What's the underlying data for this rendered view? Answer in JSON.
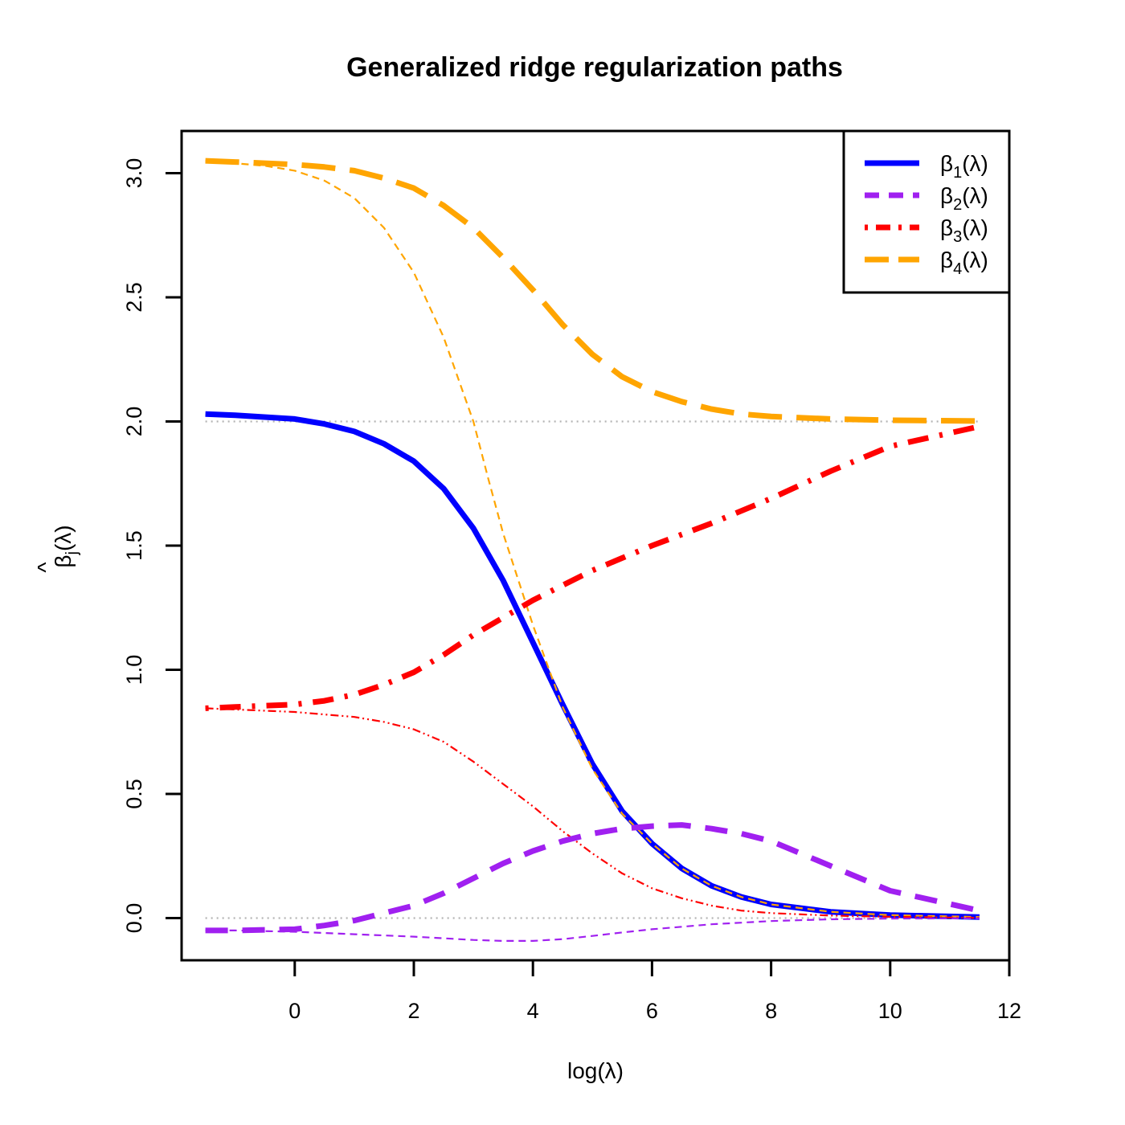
{
  "chart_data": {
    "type": "line",
    "title": "Generalized ridge regularization paths",
    "xlabel": "log(λ)",
    "ylabel": {
      "hat": "^",
      "main": "β",
      "sub": "j",
      "suffix": "(λ)"
    },
    "xlim": [
      -1.9,
      12
    ],
    "ylim": [
      -0.17,
      3.17
    ],
    "xticks": [
      "0",
      "2",
      "4",
      "6",
      "8",
      "10",
      "12"
    ],
    "xtick_values": [
      0,
      2,
      4,
      6,
      8,
      10,
      12
    ],
    "yticks": [
      "0.0",
      "0.5",
      "1.0",
      "1.5",
      "2.0",
      "2.5",
      "3.0"
    ],
    "ytick_values": [
      0,
      0.5,
      1,
      1.5,
      2,
      2.5,
      3
    ],
    "reference_lines": [
      0,
      2
    ],
    "reference_color": "#b3b3b3",
    "legend_position": "top-right",
    "legend": [
      {
        "base": "β",
        "sub": "1",
        "suffix": "(λ)",
        "color": "#0000ff",
        "dash": "solid"
      },
      {
        "base": "β",
        "sub": "2",
        "suffix": "(λ)",
        "color": "#a020f0",
        "dash": "dashed"
      },
      {
        "base": "β",
        "sub": "3",
        "suffix": "(λ)",
        "color": "#ff0000",
        "dash": "dotdash"
      },
      {
        "base": "β",
        "sub": "4",
        "suffix": "(λ)",
        "color": "#ffa500",
        "dash": "longdash"
      }
    ],
    "series": [
      {
        "color": "#0000ff",
        "dash": "solid",
        "weight": "thick",
        "x": [
          -1.5,
          -1,
          0,
          0.5,
          1,
          1.5,
          2,
          2.5,
          3,
          3.5,
          4,
          4.5,
          5,
          5.5,
          6,
          6.5,
          7,
          7.5,
          8,
          9,
          10,
          11.5
        ],
        "y": [
          2.03,
          2.025,
          2.01,
          1.99,
          1.96,
          1.91,
          1.84,
          1.73,
          1.57,
          1.36,
          1.11,
          0.86,
          0.62,
          0.43,
          0.3,
          0.2,
          0.13,
          0.085,
          0.055,
          0.025,
          0.012,
          0.004
        ]
      },
      {
        "color": "#ffa500",
        "dash": "dashed",
        "weight": "thin",
        "x": [
          -1.5,
          -1,
          -0.5,
          0,
          0.5,
          1,
          1.5,
          2,
          2.5,
          3,
          3.25,
          3.5,
          4,
          4.5,
          5,
          5.5,
          6,
          6.5,
          7,
          7.5,
          8,
          9,
          10,
          11.5
        ],
        "y": [
          3.05,
          3.04,
          3.03,
          3.01,
          2.97,
          2.9,
          2.78,
          2.6,
          2.34,
          2.0,
          1.77,
          1.55,
          1.18,
          0.85,
          0.6,
          0.42,
          0.3,
          0.2,
          0.13,
          0.085,
          0.055,
          0.025,
          0.012,
          0.004
        ]
      },
      {
        "color": "#ff0000",
        "dash": "dashdotdot",
        "weight": "thin",
        "x": [
          -1.5,
          -1,
          0,
          1,
          1.5,
          2,
          2.5,
          3,
          3.5,
          4,
          4.5,
          5,
          5.5,
          6,
          6.5,
          7,
          7.5,
          8,
          9,
          10,
          11.5
        ],
        "y": [
          0.845,
          0.84,
          0.83,
          0.81,
          0.79,
          0.76,
          0.71,
          0.63,
          0.54,
          0.45,
          0.35,
          0.26,
          0.18,
          0.12,
          0.08,
          0.05,
          0.03,
          0.02,
          0.01,
          0.005,
          0.001
        ]
      },
      {
        "color": "#a020f0",
        "dash": "dashed",
        "weight": "thin",
        "x": [
          -1.5,
          -1,
          0,
          1,
          2,
          3,
          3.5,
          4,
          4.5,
          5,
          5.5,
          6,
          7,
          8,
          9,
          10,
          11.5
        ],
        "y": [
          -0.05,
          -0.05,
          -0.055,
          -0.065,
          -0.075,
          -0.088,
          -0.092,
          -0.092,
          -0.085,
          -0.072,
          -0.058,
          -0.045,
          -0.025,
          -0.012,
          -0.005,
          -0.002,
          -0.001
        ]
      },
      {
        "color": "#ffa500",
        "dash": "longdash",
        "weight": "thick",
        "x": [
          -1.5,
          -1,
          0,
          0.5,
          1,
          1.5,
          2,
          2.5,
          3,
          3.5,
          4,
          4.5,
          5,
          5.5,
          6,
          6.5,
          7,
          7.5,
          8,
          9,
          10,
          11.5
        ],
        "y": [
          3.05,
          3.045,
          3.035,
          3.025,
          3.01,
          2.98,
          2.94,
          2.87,
          2.78,
          2.66,
          2.53,
          2.39,
          2.27,
          2.18,
          2.12,
          2.08,
          2.05,
          2.03,
          2.02,
          2.01,
          2.005,
          2.002
        ]
      },
      {
        "color": "#ff0000",
        "dash": "dotdash",
        "weight": "thick",
        "x": [
          -1.5,
          -1,
          0,
          0.5,
          1,
          1.5,
          2,
          2.5,
          3,
          3.5,
          4,
          4.5,
          5,
          5.5,
          6,
          7,
          8,
          9,
          10,
          11.5
        ],
        "y": [
          0.845,
          0.85,
          0.86,
          0.875,
          0.9,
          0.94,
          0.99,
          1.06,
          1.14,
          1.21,
          1.28,
          1.34,
          1.4,
          1.45,
          1.5,
          1.59,
          1.69,
          1.8,
          1.9,
          1.98
        ]
      },
      {
        "color": "#a020f0",
        "dash": "dashed",
        "weight": "thick",
        "x": [
          -1.5,
          -1,
          0,
          0.5,
          1,
          1.5,
          2,
          2.5,
          3,
          3.5,
          4,
          4.5,
          5,
          5.5,
          6,
          6.5,
          7,
          7.5,
          8,
          9,
          10,
          11.5
        ],
        "y": [
          -0.05,
          -0.05,
          -0.045,
          -0.03,
          -0.01,
          0.02,
          0.05,
          0.1,
          0.16,
          0.22,
          0.27,
          0.31,
          0.34,
          0.36,
          0.37,
          0.375,
          0.36,
          0.34,
          0.31,
          0.21,
          0.11,
          0.03
        ]
      }
    ]
  }
}
